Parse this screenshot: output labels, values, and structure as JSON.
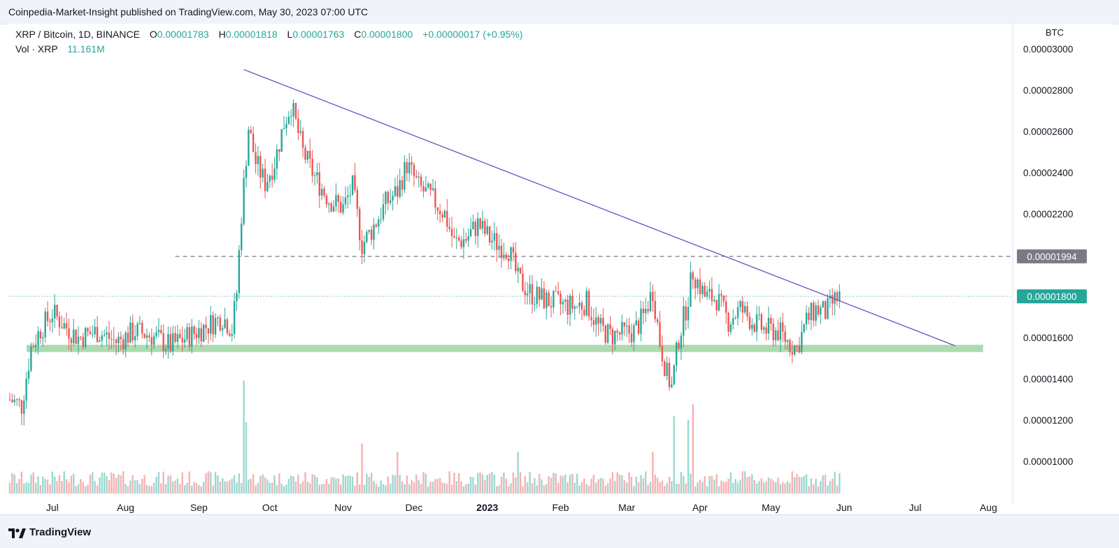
{
  "header": {
    "publisher": "Coinpedia-Market-Insight published on TradingView.com, May 30, 2023 07:00 UTC"
  },
  "legend": {
    "symbol": "XRP / Bitcoin, 1D, BINANCE",
    "open_label": "O",
    "open": "0.00001783",
    "high_label": "H",
    "high": "0.00001818",
    "low_label": "L",
    "low": "0.00001763",
    "close_label": "C",
    "close": "0.00001800",
    "change": "+0.00000017 (+0.95%)",
    "volume_label": "Vol · XRP",
    "volume": "11.161M"
  },
  "footer": {
    "brand": "TradingView"
  },
  "chart_data": {
    "type": "candlestick",
    "symbol": "XRP/BTC",
    "interval": "1D",
    "exchange": "BINANCE",
    "currency": "BTC",
    "x_ticks": [
      "Jul",
      "Aug",
      "Sep",
      "Oct",
      "Nov",
      "Dec",
      "2023",
      "Feb",
      "Mar",
      "Apr",
      "May",
      "Jun",
      "Jul",
      "Aug"
    ],
    "y_ticks": [
      "0.00003000",
      "0.00002800",
      "0.00002600",
      "0.00002400",
      "0.00002200",
      "0.00002000",
      "0.00001800",
      "0.00001600",
      "0.00001400",
      "0.00001200",
      "0.00001000"
    ],
    "ylim": [
      8.7e-06,
      3.1e-05
    ],
    "price_labels": [
      {
        "text": "0.00001994",
        "value": 1.994e-05,
        "color": "#787b86"
      },
      {
        "text": "0.00001800",
        "value": 1.8e-05,
        "color": "#26a69a"
      }
    ],
    "annotations": {
      "horizontal_resistance": {
        "value": 1.994e-05,
        "from": "2022-08-22",
        "to": "2023-08-09"
      },
      "support_zone": {
        "low": 1.53e-05,
        "high": 1.565e-05,
        "from": "2022-06-13",
        "to": "2023-07-20"
      },
      "descending_trendline": {
        "start": {
          "date": "2022-09-20",
          "value": 2.9e-05
        },
        "end": {
          "date": "2023-07-18",
          "value": 1.56e-05
        }
      },
      "last_price_line": 1.8e-05
    },
    "price_path": [
      [
        "2022-06-13",
        1.3e-05
      ],
      [
        "2022-06-18",
        1.27e-05
      ],
      [
        "2022-06-22",
        1.55e-05
      ],
      [
        "2022-06-26",
        1.64e-05
      ],
      [
        "2022-07-01",
        1.72e-05
      ],
      [
        "2022-07-06",
        1.66e-05
      ],
      [
        "2022-07-12",
        1.6e-05
      ],
      [
        "2022-07-20",
        1.63e-05
      ],
      [
        "2022-07-28",
        1.58e-05
      ],
      [
        "2022-08-05",
        1.63e-05
      ],
      [
        "2022-08-12",
        1.61e-05
      ],
      [
        "2022-08-20",
        1.56e-05
      ],
      [
        "2022-08-28",
        1.61e-05
      ],
      [
        "2022-09-05",
        1.66e-05
      ],
      [
        "2022-09-11",
        1.7e-05
      ],
      [
        "2022-09-15",
        1.64e-05
      ],
      [
        "2022-09-17",
        1.82e-05
      ],
      [
        "2022-09-19",
        2.2e-05
      ],
      [
        "2022-09-22",
        2.62e-05
      ],
      [
        "2022-09-25",
        2.45e-05
      ],
      [
        "2022-09-29",
        2.35e-05
      ],
      [
        "2022-10-03",
        2.45e-05
      ],
      [
        "2022-10-07",
        2.64e-05
      ],
      [
        "2022-10-10",
        2.73e-05
      ],
      [
        "2022-10-15",
        2.5e-05
      ],
      [
        "2022-10-20",
        2.38e-05
      ],
      [
        "2022-10-26",
        2.27e-05
      ],
      [
        "2022-11-01",
        2.23e-05
      ],
      [
        "2022-11-05",
        2.33e-05
      ],
      [
        "2022-11-09",
        2.05e-05
      ],
      [
        "2022-11-13",
        2.12e-05
      ],
      [
        "2022-11-19",
        2.25e-05
      ],
      [
        "2022-11-24",
        2.31e-05
      ],
      [
        "2022-11-28",
        2.44e-05
      ],
      [
        "2022-12-03",
        2.33e-05
      ],
      [
        "2022-12-09",
        2.27e-05
      ],
      [
        "2022-12-14",
        2.2e-05
      ],
      [
        "2022-12-18",
        2.06e-05
      ],
      [
        "2022-12-23",
        2.08e-05
      ],
      [
        "2022-12-28",
        2.15e-05
      ],
      [
        "2023-01-02",
        2.08e-05
      ],
      [
        "2023-01-06",
        2.05e-05
      ],
      [
        "2023-01-10",
        2.03e-05
      ],
      [
        "2023-01-14",
        1.88e-05
      ],
      [
        "2023-01-20",
        1.81e-05
      ],
      [
        "2023-01-26",
        1.78e-05
      ],
      [
        "2023-02-01",
        1.76e-05
      ],
      [
        "2023-02-07",
        1.75e-05
      ],
      [
        "2023-02-12",
        1.77e-05
      ],
      [
        "2023-02-17",
        1.65e-05
      ],
      [
        "2023-02-22",
        1.61e-05
      ],
      [
        "2023-02-28",
        1.62e-05
      ],
      [
        "2023-03-04",
        1.63e-05
      ],
      [
        "2023-03-08",
        1.7e-05
      ],
      [
        "2023-03-12",
        1.83e-05
      ],
      [
        "2023-03-15",
        1.58e-05
      ],
      [
        "2023-03-18",
        1.42e-05
      ],
      [
        "2023-03-20",
        1.36e-05
      ],
      [
        "2023-03-23",
        1.6e-05
      ],
      [
        "2023-03-26",
        1.74e-05
      ],
      [
        "2023-03-29",
        1.92e-05
      ],
      [
        "2023-04-03",
        1.8e-05
      ],
      [
        "2023-04-08",
        1.79e-05
      ],
      [
        "2023-04-13",
        1.68e-05
      ],
      [
        "2023-04-18",
        1.74e-05
      ],
      [
        "2023-04-23",
        1.68e-05
      ],
      [
        "2023-04-28",
        1.64e-05
      ],
      [
        "2023-05-04",
        1.63e-05
      ],
      [
        "2023-05-09",
        1.57e-05
      ],
      [
        "2023-05-12",
        1.55e-05
      ],
      [
        "2023-05-16",
        1.68e-05
      ],
      [
        "2023-05-20",
        1.74e-05
      ],
      [
        "2023-05-24",
        1.72e-05
      ],
      [
        "2023-05-28",
        1.78e-05
      ],
      [
        "2023-05-30",
        1.8e-05
      ]
    ],
    "volume_spikes": [
      [
        "2022-09-20",
        0.95
      ],
      [
        "2022-09-21",
        0.6
      ],
      [
        "2022-11-09",
        0.42
      ],
      [
        "2022-11-24",
        0.35
      ],
      [
        "2023-01-14",
        0.35
      ],
      [
        "2023-03-12",
        0.35
      ],
      [
        "2023-03-21",
        0.65
      ],
      [
        "2023-03-27",
        0.62
      ],
      [
        "2023-03-29",
        0.75
      ]
    ],
    "colors": {
      "up": "#26a69a",
      "down": "#ef5350",
      "trendline": "#7e57c2",
      "support": "#a5d6a7",
      "hline": "#787b86",
      "last_price": "#26a69a"
    }
  }
}
